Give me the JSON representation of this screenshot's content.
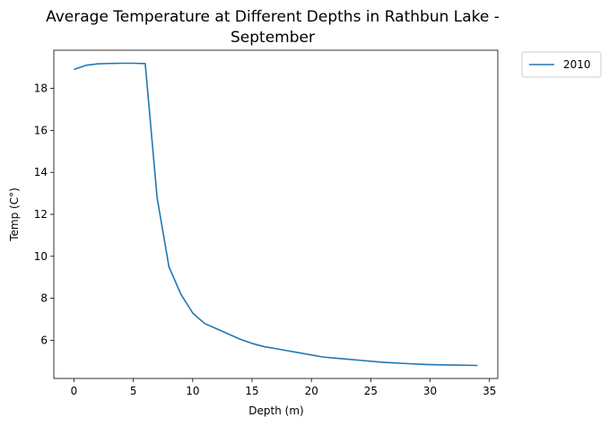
{
  "chart_data": {
    "type": "line",
    "title_line1": "Average Temperature at Different Depths in Rathbun Lake -",
    "title_line2": "September",
    "xlabel": "Depth (m)",
    "ylabel": "Temp (C°)",
    "xlim": [
      -1.7,
      35.7
    ],
    "ylim": [
      4.18,
      19.82
    ],
    "xticks": [
      0,
      5,
      10,
      15,
      20,
      25,
      30,
      35
    ],
    "yticks": [
      6,
      8,
      10,
      12,
      14,
      16,
      18
    ],
    "legend_position": "outside-top-right",
    "grid": false,
    "series": [
      {
        "name": "2010",
        "color": "#1f77b4",
        "x": [
          0,
          1,
          2,
          3,
          4,
          5,
          6,
          7,
          8,
          9,
          10,
          11,
          12,
          13,
          14,
          15,
          16,
          17,
          18,
          19,
          20,
          21,
          22,
          23,
          24,
          25,
          26,
          27,
          28,
          29,
          30,
          31,
          32,
          33,
          34
        ],
        "y": [
          18.9,
          19.1,
          19.17,
          19.19,
          19.2,
          19.2,
          19.18,
          12.8,
          9.5,
          8.2,
          7.3,
          6.8,
          6.55,
          6.3,
          6.05,
          5.85,
          5.7,
          5.6,
          5.5,
          5.4,
          5.3,
          5.2,
          5.15,
          5.1,
          5.05,
          5.0,
          4.95,
          4.92,
          4.89,
          4.86,
          4.84,
          4.83,
          4.82,
          4.81,
          4.8
        ]
      }
    ]
  }
}
